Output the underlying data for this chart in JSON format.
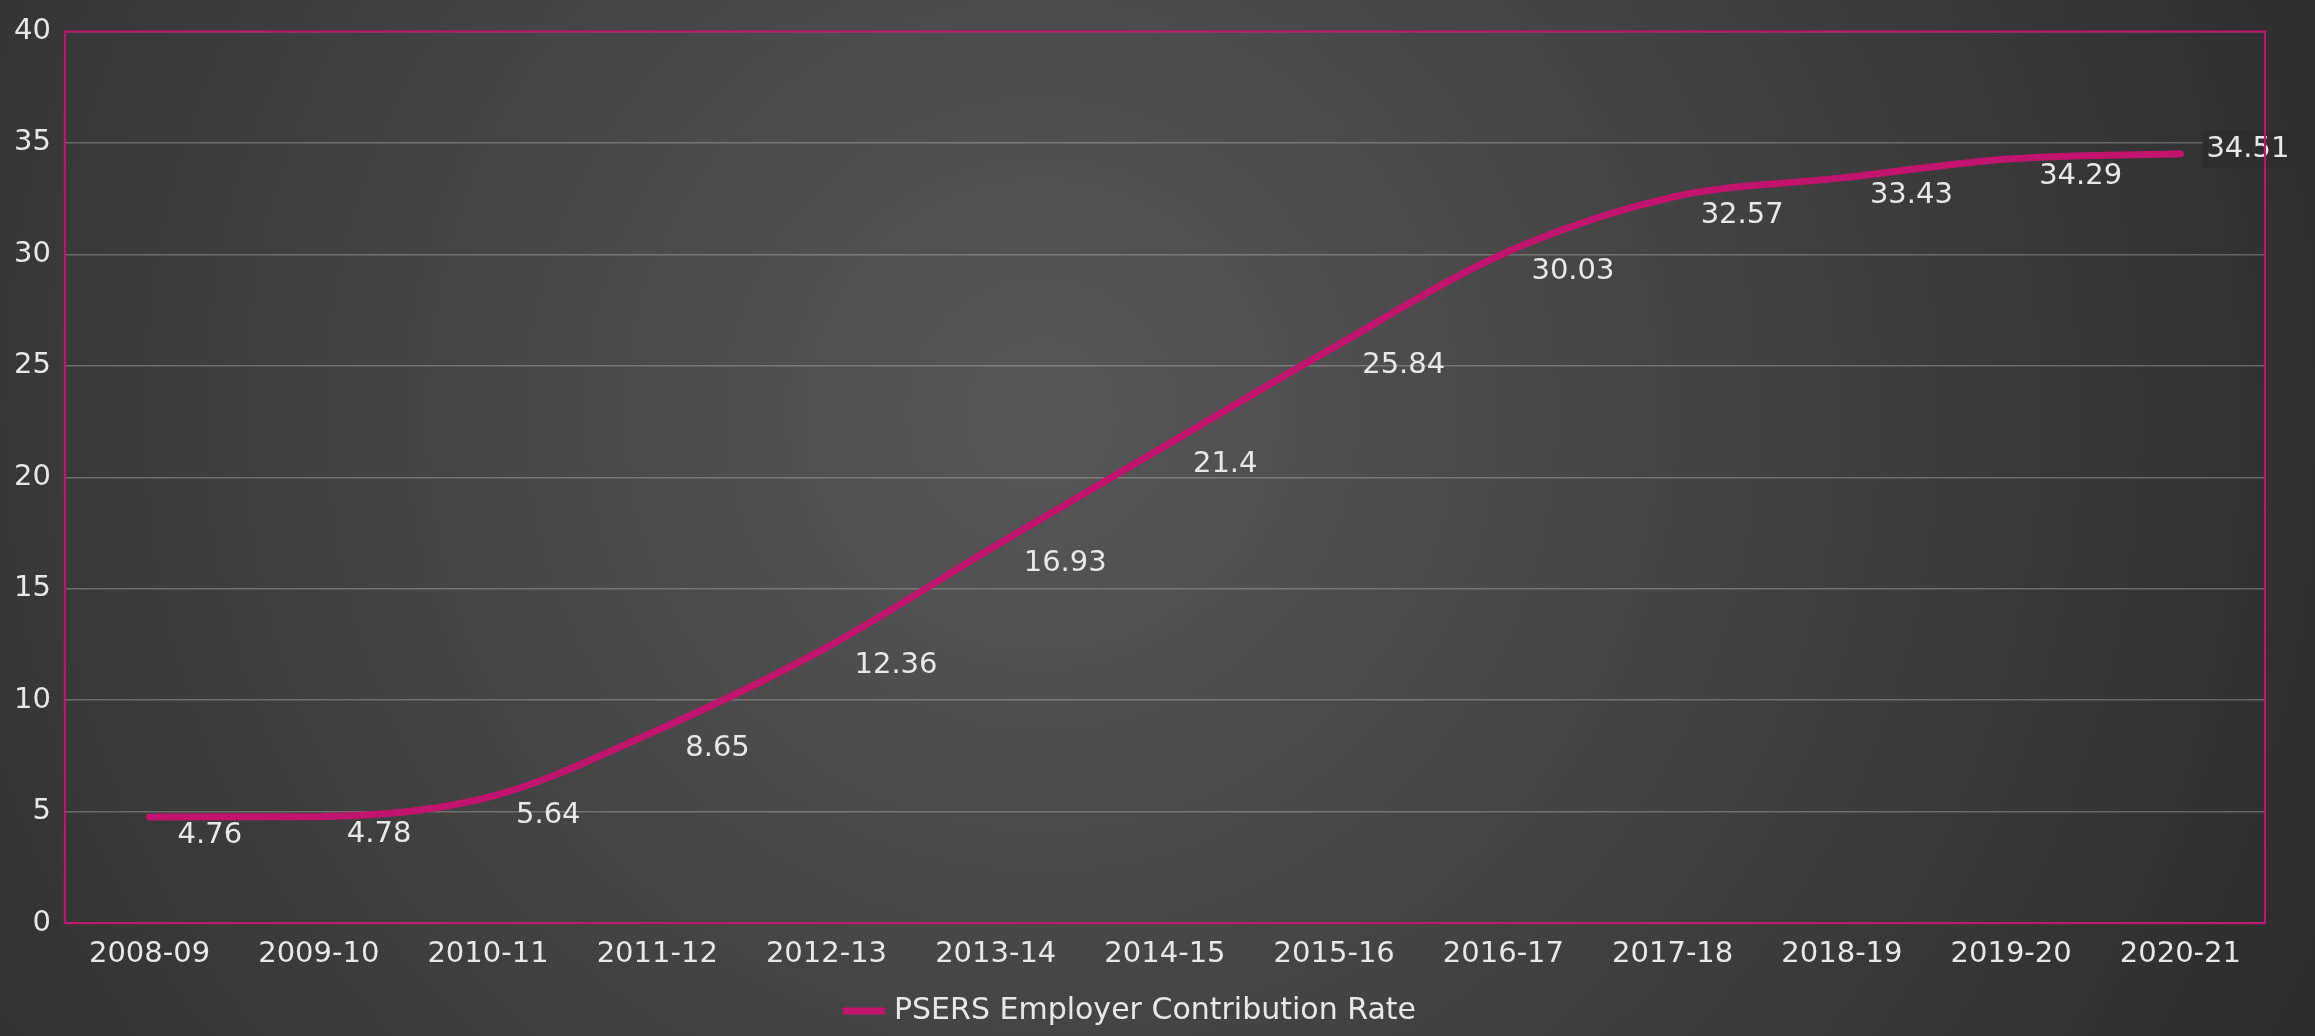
{
  "chart_data": {
    "type": "line",
    "categories": [
      "2008-09",
      "2009-10",
      "2010-11",
      "2011-12",
      "2012-13",
      "2013-14",
      "2014-15",
      "2015-16",
      "2016-17",
      "2017-18",
      "2018-19",
      "2019-20",
      "2020-21"
    ],
    "series": [
      {
        "name": "PSERS Employer Contribution Rate",
        "color": "#c2136f",
        "values": [
          4.76,
          4.78,
          5.64,
          8.65,
          12.36,
          16.93,
          21.4,
          25.84,
          30.03,
          32.57,
          33.43,
          34.29,
          34.51
        ]
      }
    ],
    "ylim": [
      0,
      40
    ],
    "yticks": [
      0,
      5,
      10,
      15,
      20,
      25,
      30,
      35,
      40
    ],
    "grid": "y",
    "legend": "bottom",
    "data_labels": true,
    "marker": "none",
    "line_style": "solid"
  }
}
